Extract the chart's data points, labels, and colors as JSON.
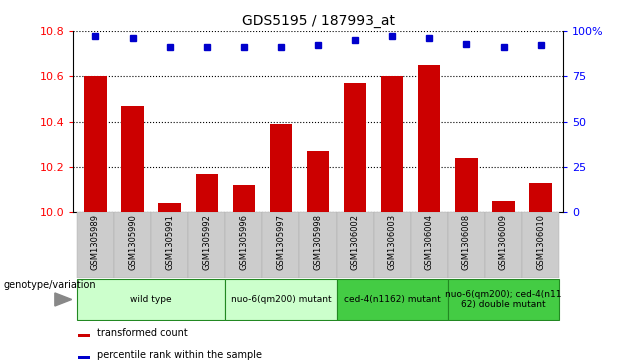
{
  "title": "GDS5195 / 187993_at",
  "samples": [
    "GSM1305989",
    "GSM1305990",
    "GSM1305991",
    "GSM1305992",
    "GSM1305996",
    "GSM1305997",
    "GSM1305998",
    "GSM1306002",
    "GSM1306003",
    "GSM1306004",
    "GSM1306008",
    "GSM1306009",
    "GSM1306010"
  ],
  "bar_values": [
    10.6,
    10.47,
    10.04,
    10.17,
    10.12,
    10.39,
    10.27,
    10.57,
    10.6,
    10.65,
    10.24,
    10.05,
    10.13
  ],
  "percentile_values": [
    97,
    96,
    91,
    91,
    91,
    91,
    92,
    95,
    97,
    96,
    93,
    91,
    92
  ],
  "bar_color": "#cc0000",
  "dot_color": "#0000cc",
  "ylim_left": [
    10.0,
    10.8
  ],
  "ylim_right": [
    0,
    100
  ],
  "yticks_left": [
    10.0,
    10.2,
    10.4,
    10.6,
    10.8
  ],
  "yticks_right": [
    0,
    25,
    50,
    75,
    100
  ],
  "ytick_labels_right": [
    "0",
    "25",
    "50",
    "75",
    "100%"
  ],
  "group_labels": [
    "wild type",
    "nuo-6(qm200) mutant",
    "ced-4(n1162) mutant",
    "nuo-6(qm200); ced-4(n11\n62) double mutant"
  ],
  "group_ranges": [
    [
      0,
      3
    ],
    [
      4,
      6
    ],
    [
      7,
      9
    ],
    [
      10,
      12
    ]
  ],
  "light_green": "#ccffcc",
  "dark_green": "#44cc44",
  "bar_width": 0.6,
  "gray_box_color": "#cccccc",
  "gray_box_alt": "#bbbbbb"
}
